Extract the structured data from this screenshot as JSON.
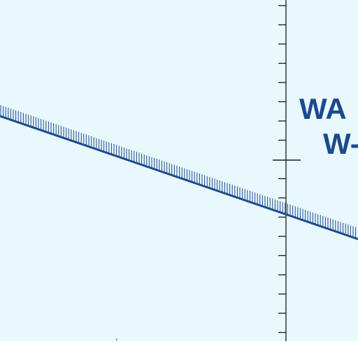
{
  "chart_area_label": {
    "line1": "WA",
    "line2": "W-"
  },
  "colors": {
    "water": "#e8f8fc",
    "ink": "#1d4a8c",
    "tick": "#1a1a1a",
    "margin": "#ffffff"
  },
  "features": [
    "meridian-line-with-ticks",
    "hatched-boundary-line",
    "restricted-area-label"
  ]
}
